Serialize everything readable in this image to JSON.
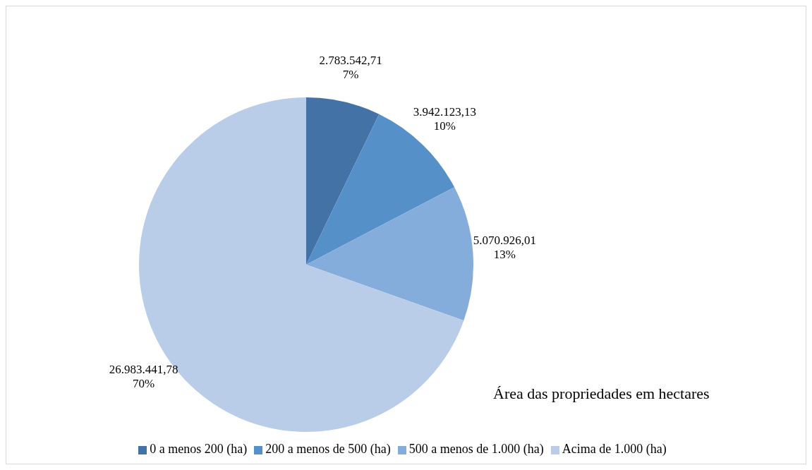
{
  "chart_data": {
    "type": "pie",
    "title": "Área das propriedades em hectares",
    "categories": [
      "0 a menos 200 (ha)",
      "200 a menos de 500 (ha)",
      "500 a menos de 1.000 (ha)",
      "Acima de 1.000 (ha)"
    ],
    "values": [
      2783542.71,
      3942123.13,
      5070926.01,
      26983441.78
    ],
    "colors": [
      "#4372a6",
      "#5590c8",
      "#85addb",
      "#b9cde8"
    ],
    "value_labels": [
      "2.783.542,71\n7%",
      "3.942.123,13\n10%",
      "5.070.926,01\n13%",
      "26.983.441,78\n70%"
    ],
    "legend": "bottom"
  }
}
